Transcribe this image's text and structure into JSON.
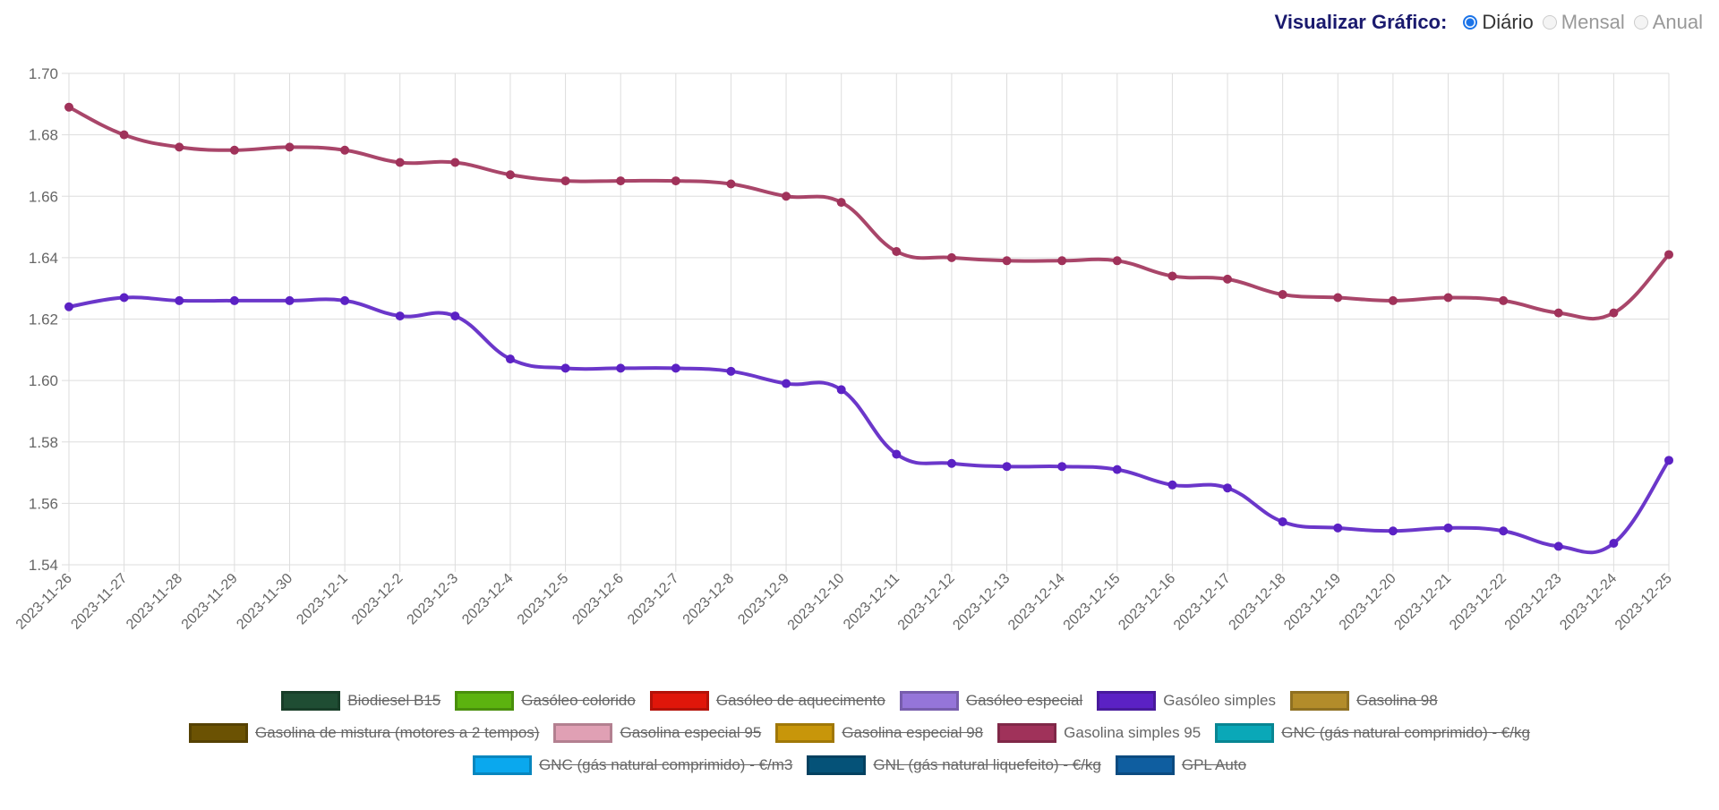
{
  "header": {
    "title": "Visualizar Gráfico:",
    "options": [
      {
        "label": "Diário",
        "selected": true
      },
      {
        "label": "Mensal",
        "selected": false
      },
      {
        "label": "Anual",
        "selected": false
      }
    ]
  },
  "chart_data": {
    "type": "line",
    "categories": [
      "2023-11-26",
      "2023-11-27",
      "2023-11-28",
      "2023-11-29",
      "2023-11-30",
      "2023-12-1",
      "2023-12-2",
      "2023-12-3",
      "2023-12-4",
      "2023-12-5",
      "2023-12-6",
      "2023-12-7",
      "2023-12-8",
      "2023-12-9",
      "2023-12-10",
      "2023-12-11",
      "2023-12-12",
      "2023-12-13",
      "2023-12-14",
      "2023-12-15",
      "2023-12-16",
      "2023-12-17",
      "2023-12-18",
      "2023-12-19",
      "2023-12-20",
      "2023-12-21",
      "2023-12-22",
      "2023-12-23",
      "2023-12-24",
      "2023-12-25"
    ],
    "ylim": [
      1.54,
      1.7
    ],
    "yticks": [
      "1.70",
      "1.68",
      "1.66",
      "1.64",
      "1.62",
      "1.60",
      "1.58",
      "1.56",
      "1.54"
    ],
    "grid": true,
    "legend_position": "bottom",
    "series": [
      {
        "name": "Gasolina simples 95",
        "color": "#a0325a",
        "values": [
          1.689,
          1.68,
          1.676,
          1.675,
          1.676,
          1.675,
          1.671,
          1.671,
          1.667,
          1.665,
          1.665,
          1.665,
          1.664,
          1.66,
          1.658,
          1.642,
          1.64,
          1.639,
          1.639,
          1.639,
          1.634,
          1.633,
          1.628,
          1.627,
          1.626,
          1.627,
          1.626,
          1.622,
          1.622,
          1.641
        ]
      },
      {
        "name": "Gasóleo simples",
        "color": "#5b21c4",
        "values": [
          1.624,
          1.627,
          1.626,
          1.626,
          1.626,
          1.626,
          1.621,
          1.621,
          1.607,
          1.604,
          1.604,
          1.604,
          1.603,
          1.599,
          1.597,
          1.576,
          1.573,
          1.572,
          1.572,
          1.571,
          1.566,
          1.565,
          1.554,
          1.552,
          1.551,
          1.552,
          1.551,
          1.546,
          1.547,
          1.574
        ]
      }
    ],
    "legend": [
      [
        {
          "label": "Biodiesel B15",
          "color": "#1f4d33",
          "hidden": true
        },
        {
          "label": "Gasóleo colorido",
          "color": "#5cb30f",
          "hidden": true
        },
        {
          "label": "Gasóleo de aquecimento",
          "color": "#e0160a",
          "hidden": true
        },
        {
          "label": "Gasóleo especial",
          "color": "#9575d9",
          "hidden": true
        },
        {
          "label": "Gasóleo simples",
          "color": "#5b21c4",
          "hidden": false
        },
        {
          "label": "Gasolina 98",
          "color": "#b38c2a",
          "hidden": true
        }
      ],
      [
        {
          "label": "Gasolina de mistura (motores a 2 tempos)",
          "color": "#6b5203",
          "hidden": true
        },
        {
          "label": "Gasolina especial 95",
          "color": "#e0a0b4",
          "hidden": true
        },
        {
          "label": "Gasolina especial 98",
          "color": "#c8960a",
          "hidden": true
        },
        {
          "label": "Gasolina simples 95",
          "color": "#a0325a",
          "hidden": false
        },
        {
          "label": "GNC (gás natural comprimido) - €/kg",
          "color": "#0aa8b8",
          "hidden": true
        }
      ],
      [
        {
          "label": "GNC (gás natural comprimido) - €/m3",
          "color": "#0aa8ee",
          "hidden": true
        },
        {
          "label": "GNL (gás natural liquefeito) - €/kg",
          "color": "#055278",
          "hidden": true
        },
        {
          "label": "GPL Auto",
          "color": "#0f5ea0",
          "hidden": true
        }
      ]
    ]
  }
}
